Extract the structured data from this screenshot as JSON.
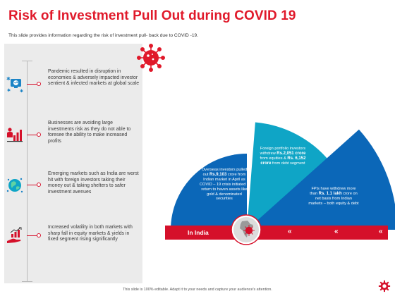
{
  "slide": {
    "title": "Risk of Investment Pull Out during COVID 19",
    "subtitle": "This slide provides information regarding the risk of investment pull- back due to COVID -19."
  },
  "points": [
    {
      "text": "Pandemic resulted in disruption in economies & adversely impacted investor sentient & infected markets at global scale",
      "icon": "global-network-icon"
    },
    {
      "text": "Businesses are avoiding large investments risk as they do not able to foresee the ability to make increased profits",
      "icon": "business-chart-icon"
    },
    {
      "text": "Emerging markets such as India are worst hit with foreign investors taking their money out & taking shelters to safer investment avenues",
      "icon": "globe-icon"
    },
    {
      "text": "Increased volatility in both markets with sharp fall in equity markets & yields in fixed segment rising significantly",
      "icon": "hand-growth-icon"
    }
  ],
  "callouts": {
    "overseas": {
      "pre": "Overseas investors pulled out ",
      "bold": "Rs.9,103",
      "post": " crore from Indian market in April as COVID – 19 crisis initiated a return to haven assets like gold & denominated securities"
    },
    "fpi_equity": {
      "pre": "Foreign portfolio investors withdrew ",
      "bold1": "Rs.2,051 crore",
      "mid": " from equities & ",
      "bold2": "Rs. 6,152 crore",
      "post": " from debt segment"
    },
    "fpi_total": {
      "pre": "FPIs have withdrew more than ",
      "bold": "Rs. 1.1 lakh",
      "post": " crore on net basis from Indian markets – both equity & debt"
    }
  },
  "bar": {
    "label": "In India",
    "arrow": "«"
  },
  "footer": "This slide is 100% editable. Adapt it to your needs and capture your audience's attention.",
  "colors": {
    "title_red": "#e0192a",
    "bar_red": "#d5102a",
    "dark_blue": "#0b67b8",
    "mid_blue": "#1c84c6",
    "teal": "#0fa5c6",
    "panel_grey": "#ebebeb"
  }
}
